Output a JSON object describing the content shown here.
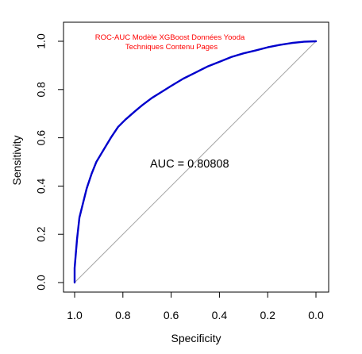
{
  "chart_data": {
    "type": "line",
    "title_lines": [
      "ROC-AUC Modèle XGBoost Données Yooda",
      "Techniques Contenu Pages"
    ],
    "xlabel": "Specificity",
    "ylabel": "Sensitivity",
    "xlim": [
      1.0,
      0.0
    ],
    "ylim": [
      0.0,
      1.0
    ],
    "x_ticks": [
      "1.0",
      "0.8",
      "0.6",
      "0.4",
      "0.2",
      "0.0"
    ],
    "y_ticks": [
      "0.0",
      "0.2",
      "0.4",
      "0.6",
      "0.8",
      "1.0"
    ],
    "annotation": "AUC =  0.80808",
    "grid": false,
    "colors": {
      "roc_curve": "#0000cc",
      "diagonal": "#a6a6a6",
      "title": "#ff0000"
    },
    "series": [
      {
        "x": [
          1.0,
          1.0,
          0.99,
          0.98,
          0.965,
          0.95,
          0.93,
          0.91,
          0.88,
          0.85,
          0.82,
          0.79,
          0.75,
          0.72,
          0.68,
          0.64,
          0.6,
          0.55,
          0.5,
          0.45,
          0.4,
          0.35,
          0.3,
          0.25,
          0.2,
          0.15,
          0.1,
          0.05,
          0.0
        ],
        "y": [
          0.0,
          0.06,
          0.18,
          0.27,
          0.33,
          0.39,
          0.45,
          0.5,
          0.55,
          0.6,
          0.645,
          0.675,
          0.71,
          0.735,
          0.765,
          0.79,
          0.815,
          0.845,
          0.87,
          0.895,
          0.915,
          0.935,
          0.95,
          0.962,
          0.975,
          0.985,
          0.993,
          0.998,
          1.0
        ]
      },
      {
        "x": [
          1.0,
          0.0
        ],
        "y": [
          0.0,
          1.0
        ]
      }
    ]
  }
}
